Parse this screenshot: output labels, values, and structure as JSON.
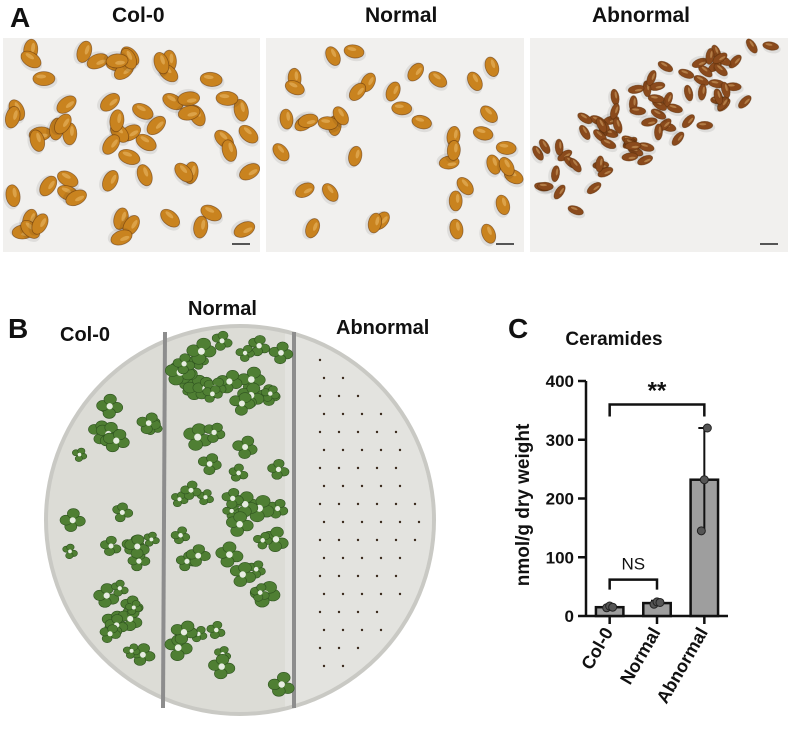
{
  "panels": {
    "a": {
      "letter": "A",
      "labels": [
        "Col-0",
        "Normal",
        "Abnormal"
      ]
    },
    "b": {
      "letter": "B",
      "labels": [
        "Col-0",
        "Normal",
        "Abnormal"
      ]
    },
    "c": {
      "letter": "C"
    }
  },
  "colors": {
    "seed_normal": "#c9831f",
    "seed_abnormal": "#8a4a1c",
    "seedling": "#4f7f33",
    "plate_bg": "#dcdcd6",
    "divider": "#8d8d8d",
    "bar_fill": "#9e9e9e"
  },
  "chart_data": {
    "type": "bar",
    "title": "Ceramides",
    "xlabel": "",
    "ylabel": "nmol/g dry weight",
    "categories": [
      "Col-0",
      "Normal",
      "Abnormal"
    ],
    "values": [
      15,
      22,
      232
    ],
    "errors": [
      3,
      4,
      88
    ],
    "points": [
      [
        14,
        17,
        15
      ],
      [
        20,
        24,
        23
      ],
      [
        145,
        232,
        320
      ]
    ],
    "ylim": [
      0,
      400
    ],
    "yticks": [
      0,
      100,
      200,
      300,
      400
    ],
    "grid": false,
    "legend": "none",
    "annotations": [
      {
        "text": "NS",
        "from": "Col-0",
        "to": "Normal"
      },
      {
        "text": "**",
        "from": "Col-0",
        "to": "Abnormal"
      }
    ]
  }
}
